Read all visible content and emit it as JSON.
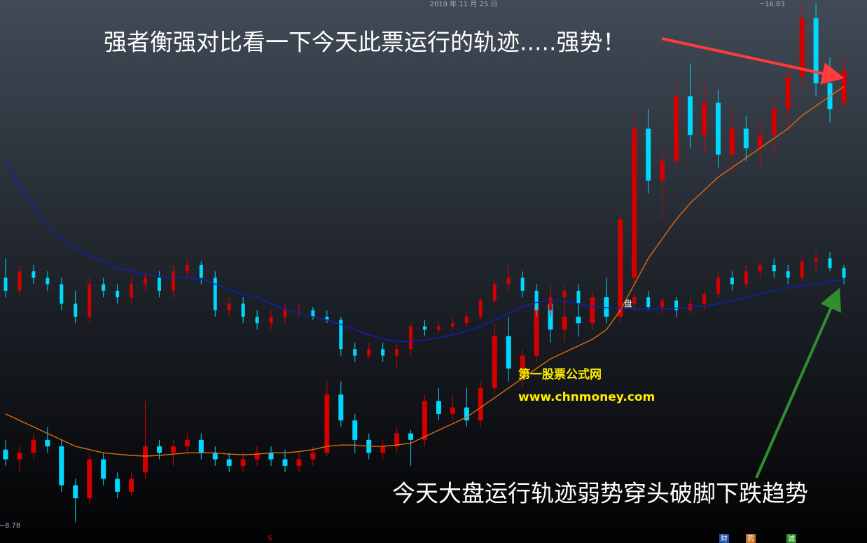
{
  "chart_data": {
    "type": "candlestick",
    "date": "2019 年 11 月 25 日",
    "annotations": [
      "强者衡强对比看一下今天此票运行的轨迹.....强势！",
      "今天大盘运行轨迹弱势穿头破脚下跌趋势"
    ],
    "watermark": [
      "第一股票公式网",
      "www.chnmoney.com"
    ],
    "marker": "盘",
    "footer": [
      "$",
      "财",
      "势",
      "诚"
    ],
    "ylim": [
      8.78,
      16.83
    ],
    "yticks": [
      8.78,
      16.83
    ],
    "up_color": "#d40000",
    "down_color": "#00d8ff",
    "series": [
      {
        "ohlc": [
          [
            9.95,
            10.1,
            9.7,
            9.8
          ],
          [
            9.8,
            10.0,
            9.6,
            9.9
          ],
          [
            9.9,
            10.2,
            9.8,
            10.1
          ],
          [
            10.1,
            10.3,
            9.9,
            10.0
          ],
          [
            10.0,
            10.1,
            9.3,
            9.4
          ],
          [
            9.4,
            9.5,
            8.83,
            9.2
          ],
          [
            9.2,
            9.9,
            9.1,
            9.8
          ],
          [
            9.8,
            9.9,
            9.4,
            9.5
          ],
          [
            9.5,
            9.6,
            9.2,
            9.3
          ],
          [
            9.3,
            9.6,
            9.25,
            9.5
          ],
          [
            9.6,
            10.7,
            9.5,
            10.0
          ],
          [
            10.0,
            10.1,
            9.8,
            9.9
          ],
          [
            9.9,
            10.1,
            9.7,
            10.0
          ],
          [
            10.0,
            10.2,
            9.9,
            10.1
          ],
          [
            10.1,
            10.2,
            9.8,
            9.9
          ],
          [
            9.9,
            10.0,
            9.7,
            9.8
          ],
          [
            9.8,
            9.9,
            9.6,
            9.7
          ],
          [
            9.7,
            9.9,
            9.6,
            9.8
          ],
          [
            9.8,
            10.0,
            9.7,
            9.9
          ],
          [
            9.9,
            10.0,
            9.7,
            9.8
          ],
          [
            9.8,
            9.95,
            9.6,
            9.7
          ],
          [
            9.7,
            9.9,
            9.6,
            9.8
          ],
          [
            9.8,
            10.0,
            9.7,
            9.9
          ],
          [
            9.9,
            11.0,
            9.85,
            10.8
          ],
          [
            10.8,
            11.0,
            10.3,
            10.4
          ],
          [
            10.4,
            10.5,
            9.9,
            10.1
          ],
          [
            10.1,
            10.2,
            9.8,
            9.9
          ],
          [
            9.9,
            10.1,
            9.8,
            10.0
          ],
          [
            10.0,
            10.3,
            9.9,
            10.2
          ],
          [
            10.2,
            10.25,
            9.7,
            10.1
          ],
          [
            10.1,
            10.8,
            10.0,
            10.7
          ],
          [
            10.7,
            10.9,
            10.4,
            10.5
          ],
          [
            10.5,
            10.8,
            10.4,
            10.6
          ],
          [
            10.6,
            10.9,
            10.3,
            10.4
          ],
          [
            10.4,
            11.0,
            10.3,
            10.9
          ],
          [
            10.9,
            11.9,
            10.8,
            11.7
          ],
          [
            11.7,
            12.0,
            11.0,
            11.2
          ],
          [
            11.2,
            11.5,
            10.9,
            11.4
          ],
          [
            11.4,
            12.4,
            11.3,
            12.2
          ],
          [
            12.2,
            12.4,
            11.6,
            11.8
          ],
          [
            11.8,
            12.2,
            11.6,
            12.0
          ],
          [
            12.0,
            12.3,
            11.7,
            11.9
          ],
          [
            11.9,
            12.4,
            11.8,
            12.3
          ],
          [
            12.3,
            12.6,
            11.9,
            12.0
          ],
          [
            12.0,
            13.6,
            11.9,
            13.5
          ],
          [
            12.6,
            15.1,
            12.5,
            14.9
          ],
          [
            14.9,
            15.2,
            13.9,
            14.1
          ],
          [
            14.1,
            14.6,
            13.5,
            14.4
          ],
          [
            14.4,
            15.6,
            14.3,
            15.4
          ],
          [
            15.4,
            15.9,
            14.6,
            14.8
          ],
          [
            14.8,
            15.6,
            14.5,
            15.3
          ],
          [
            15.3,
            15.5,
            14.3,
            14.5
          ],
          [
            14.5,
            15.2,
            14.2,
            14.9
          ],
          [
            14.9,
            15.1,
            14.4,
            14.6
          ],
          [
            14.6,
            15.0,
            14.3,
            14.8
          ],
          [
            14.8,
            15.4,
            14.5,
            15.2
          ],
          [
            15.2,
            15.9,
            14.9,
            15.7
          ],
          [
            15.7,
            16.83,
            15.5,
            16.6
          ],
          [
            16.6,
            16.83,
            15.4,
            15.6
          ],
          [
            15.6,
            16.0,
            15.0,
            15.2
          ],
          [
            15.3,
            16.0,
            15.2,
            15.8
          ]
        ]
      },
      {
        "ohlc": [
          [
            12.6,
            12.9,
            12.3,
            12.4
          ],
          [
            12.4,
            12.8,
            12.3,
            12.7
          ],
          [
            12.7,
            12.8,
            12.5,
            12.6
          ],
          [
            12.6,
            12.7,
            12.4,
            12.5
          ],
          [
            12.5,
            12.6,
            12.1,
            12.2
          ],
          [
            12.2,
            12.4,
            11.9,
            12.0
          ],
          [
            12.0,
            12.6,
            11.9,
            12.5
          ],
          [
            12.5,
            12.6,
            12.3,
            12.4
          ],
          [
            12.4,
            12.5,
            12.2,
            12.3
          ],
          [
            12.3,
            12.6,
            12.2,
            12.5
          ],
          [
            12.5,
            12.7,
            12.4,
            12.6
          ],
          [
            12.6,
            12.7,
            12.3,
            12.4
          ],
          [
            12.4,
            12.8,
            12.3,
            12.7
          ],
          [
            12.7,
            12.9,
            12.6,
            12.8
          ],
          [
            12.8,
            12.85,
            12.5,
            12.6
          ],
          [
            12.6,
            12.7,
            12.0,
            12.1
          ],
          [
            12.1,
            12.3,
            12.0,
            12.2
          ],
          [
            12.2,
            12.3,
            11.9,
            12.0
          ],
          [
            12.0,
            12.1,
            11.8,
            11.9
          ],
          [
            11.9,
            12.1,
            11.8,
            12.0
          ],
          [
            12.0,
            12.2,
            11.9,
            12.1
          ],
          [
            12.1,
            12.2,
            12.0,
            12.1
          ],
          [
            12.1,
            12.15,
            11.95,
            12.0
          ],
          [
            12.0,
            12.1,
            11.9,
            11.95
          ],
          [
            11.95,
            12.0,
            11.4,
            11.5
          ],
          [
            11.5,
            11.6,
            11.3,
            11.4
          ],
          [
            11.4,
            11.6,
            11.35,
            11.5
          ],
          [
            11.5,
            11.6,
            11.3,
            11.4
          ],
          [
            11.4,
            11.6,
            11.2,
            11.5
          ],
          [
            11.5,
            11.9,
            11.4,
            11.85
          ],
          [
            11.85,
            11.95,
            11.7,
            11.8
          ],
          [
            11.8,
            11.9,
            11.75,
            11.85
          ],
          [
            11.85,
            12.0,
            11.8,
            11.9
          ],
          [
            11.9,
            12.1,
            11.85,
            12.0
          ],
          [
            12.0,
            12.3,
            11.95,
            12.25
          ],
          [
            12.25,
            12.6,
            12.2,
            12.5
          ],
          [
            12.5,
            12.8,
            12.4,
            12.6
          ],
          [
            12.6,
            12.7,
            12.3,
            12.4
          ],
          [
            12.4,
            12.5,
            12.0,
            12.1
          ],
          [
            12.1,
            12.5,
            12.0,
            12.3
          ],
          [
            12.3,
            12.5,
            12.2,
            12.4
          ],
          [
            12.4,
            12.5,
            12.1,
            12.2
          ],
          [
            12.2,
            12.4,
            12.1,
            12.3
          ],
          [
            12.3,
            12.4,
            12.0,
            12.1
          ],
          [
            12.1,
            12.3,
            12.0,
            12.2
          ],
          [
            12.2,
            12.35,
            12.1,
            12.3
          ],
          [
            12.3,
            12.4,
            12.1,
            12.15
          ],
          [
            12.15,
            12.3,
            12.05,
            12.25
          ],
          [
            12.25,
            12.3,
            12.0,
            12.1
          ],
          [
            12.1,
            12.3,
            12.05,
            12.2
          ],
          [
            12.2,
            12.4,
            12.1,
            12.35
          ],
          [
            12.35,
            12.7,
            12.3,
            12.6
          ],
          [
            12.6,
            12.7,
            12.4,
            12.5
          ],
          [
            12.5,
            12.8,
            12.45,
            12.7
          ],
          [
            12.7,
            12.85,
            12.6,
            12.8
          ],
          [
            12.8,
            12.9,
            12.6,
            12.7
          ],
          [
            12.7,
            12.8,
            12.5,
            12.6
          ],
          [
            12.6,
            12.9,
            12.55,
            12.85
          ],
          [
            12.85,
            13.0,
            12.7,
            12.9
          ],
          [
            12.9,
            13.0,
            12.7,
            12.75
          ],
          [
            12.75,
            12.8,
            12.5,
            12.6
          ]
        ]
      }
    ],
    "lines": [
      {
        "color": "#e06a10",
        "values": [
          10.5,
          10.4,
          10.3,
          10.2,
          10.1,
          10.0,
          9.95,
          9.9,
          9.88,
          9.86,
          9.85,
          9.86,
          9.88,
          9.9,
          9.9,
          9.9,
          9.88,
          9.87,
          9.88,
          9.9,
          9.9,
          9.92,
          9.95,
          10.0,
          10.02,
          10.02,
          10.0,
          10.0,
          10.02,
          10.05,
          10.15,
          10.25,
          10.35,
          10.45,
          10.6,
          10.75,
          10.9,
          11.05,
          11.2,
          11.35,
          11.45,
          11.55,
          11.65,
          11.8,
          12.1,
          12.5,
          12.9,
          13.2,
          13.5,
          13.75,
          13.95,
          14.15,
          14.3,
          14.45,
          14.6,
          14.75,
          14.9,
          15.1,
          15.25,
          15.4,
          15.55
        ]
      },
      {
        "color": "#1020c0",
        "values": [
          14.4,
          14.0,
          13.7,
          13.4,
          13.2,
          13.05,
          12.95,
          12.85,
          12.75,
          12.7,
          12.65,
          12.62,
          12.6,
          12.6,
          12.58,
          12.5,
          12.42,
          12.35,
          12.3,
          12.2,
          12.12,
          12.05,
          12.0,
          11.95,
          11.88,
          11.8,
          11.72,
          11.66,
          11.62,
          11.62,
          11.64,
          11.68,
          11.72,
          11.78,
          11.85,
          11.95,
          12.05,
          12.15,
          12.22,
          12.25,
          12.24,
          12.2,
          12.16,
          12.14,
          12.13,
          12.12,
          12.12,
          12.12,
          12.13,
          12.15,
          12.17,
          12.2,
          12.25,
          12.3,
          12.35,
          12.4,
          12.45,
          12.48,
          12.5,
          12.55,
          12.56
        ]
      }
    ]
  }
}
